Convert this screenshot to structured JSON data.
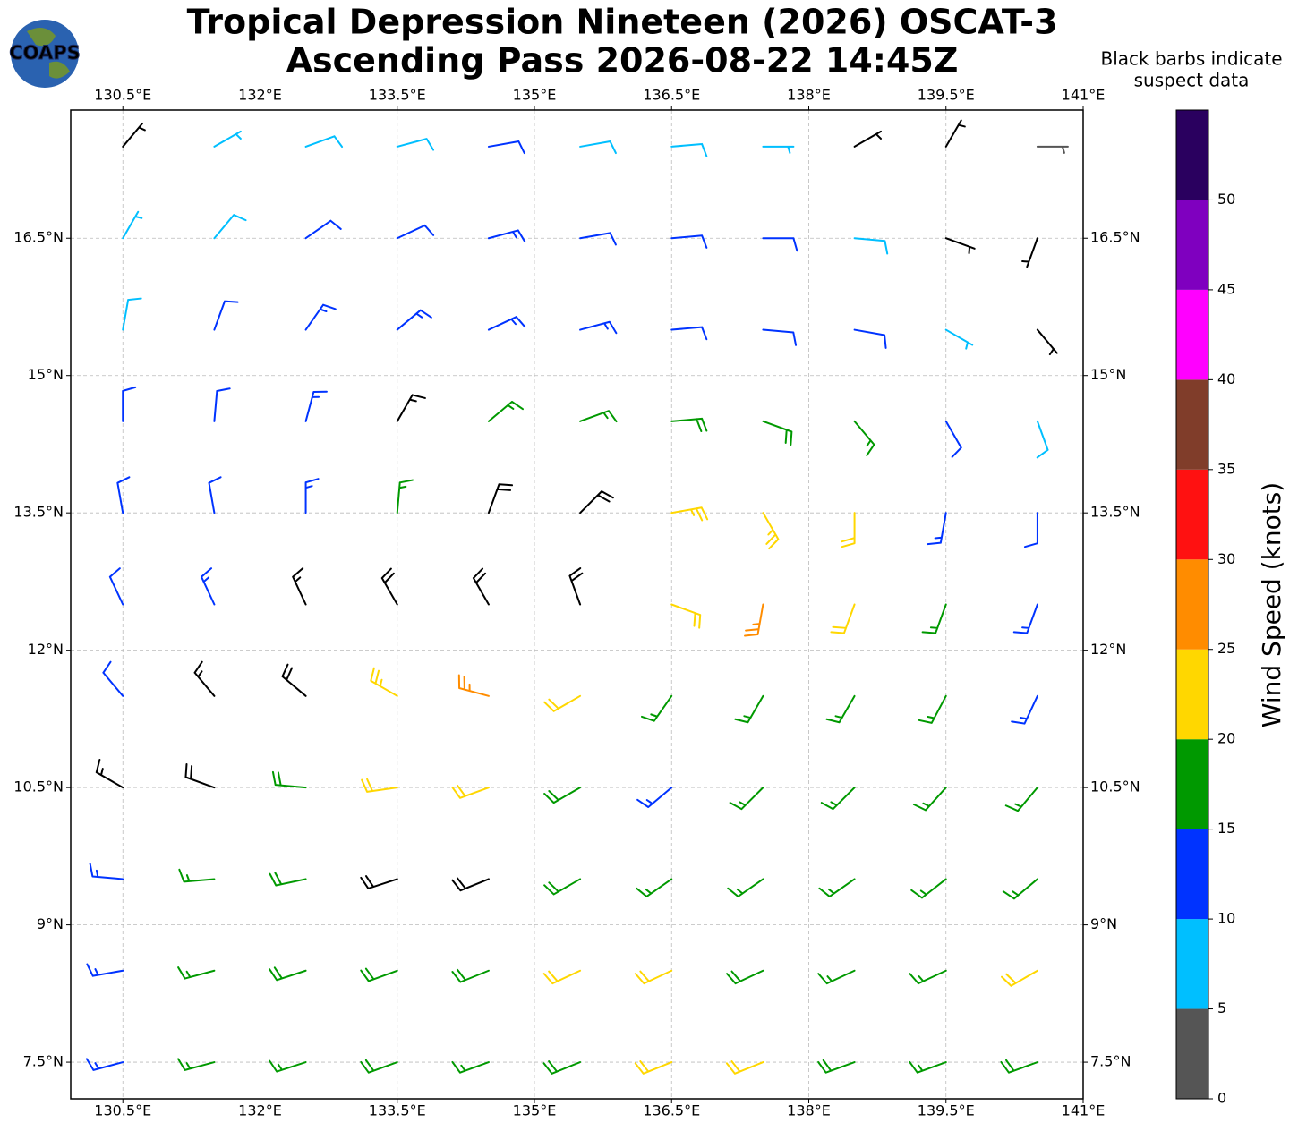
{
  "chart_data": {
    "type": "wind_barbs",
    "title_lines": [
      "Tropical Depression Nineteen (2026) OSCAT-3",
      "Ascending Pass 2026-08-22 14:45Z"
    ],
    "note_lines": [
      "Black barbs indicate",
      "suspect data"
    ],
    "logo_text": "COAPS",
    "xlim": [
      129.93,
      141.0
    ],
    "ylim": [
      7.1,
      17.9
    ],
    "xticks": [
      {
        "value": 130.5,
        "label": "130.5°E"
      },
      {
        "value": 132,
        "label": "132°E"
      },
      {
        "value": 133.5,
        "label": "133.5°E"
      },
      {
        "value": 135,
        "label": "135°E"
      },
      {
        "value": 136.5,
        "label": "136.5°E"
      },
      {
        "value": 138,
        "label": "138°E"
      },
      {
        "value": 139.5,
        "label": "139.5°E"
      },
      {
        "value": 141,
        "label": "141°E"
      }
    ],
    "yticks": [
      {
        "value": 7.5,
        "label": "7.5°N"
      },
      {
        "value": 9,
        "label": "9°N"
      },
      {
        "value": 10.5,
        "label": "10.5°N"
      },
      {
        "value": 12,
        "label": "12°N"
      },
      {
        "value": 13.5,
        "label": "13.5°N"
      },
      {
        "value": 15,
        "label": "15°N"
      },
      {
        "value": 16.5,
        "label": "16.5°N"
      }
    ],
    "grid": true,
    "suspect_color": "#000000",
    "barbs": {
      "lon": [
        130.5,
        131.5,
        132.5,
        133.5,
        134.5,
        135.5,
        136.5,
        137.5,
        138.5,
        139.5,
        140.5
      ],
      "lat": [
        7.5,
        8.5,
        9.5,
        10.5,
        11.5,
        12.5,
        13.5,
        14.5,
        15.5,
        16.5,
        17.5
      ],
      "speed": [
        [
          13,
          15,
          17,
          18,
          17,
          19,
          21,
          20,
          18,
          17,
          19
        ],
        [
          13,
          16,
          18,
          19,
          19,
          21,
          22,
          18,
          17,
          17,
          22
        ],
        [
          14,
          17,
          18,
          20,
          19,
          18,
          16,
          17,
          17,
          17,
          17
        ],
        [
          15,
          18,
          19,
          22,
          22,
          19,
          14,
          16,
          16,
          16,
          16
        ],
        [
          11,
          17,
          20,
          24,
          26,
          22,
          17,
          15,
          15,
          15,
          14
        ],
        [
          11,
          14,
          17,
          19,
          20,
          18,
          22,
          27,
          20,
          15,
          13
        ],
        [
          11,
          12,
          13,
          16,
          18,
          21,
          24,
          24,
          20,
          14,
          10
        ],
        [
          10,
          12,
          14,
          16,
          17,
          17,
          18,
          18,
          15,
          12,
          8
        ],
        [
          8,
          12,
          14,
          14,
          14,
          13,
          12,
          12,
          10,
          7,
          4
        ],
        [
          6,
          9,
          11,
          12,
          13,
          12,
          11,
          10,
          8,
          4,
          3
        ],
        [
          3,
          6,
          8,
          9,
          10,
          9,
          8,
          7,
          4,
          3,
          4
        ]
      ],
      "direction": [
        [
          255,
          255,
          252,
          250,
          250,
          248,
          248,
          248,
          250,
          250,
          250
        ],
        [
          260,
          255,
          252,
          250,
          248,
          245,
          245,
          245,
          245,
          245,
          240
        ],
        [
          275,
          265,
          258,
          252,
          248,
          240,
          235,
          235,
          235,
          232,
          230
        ],
        [
          300,
          290,
          275,
          262,
          250,
          240,
          230,
          225,
          225,
          222,
          220
        ],
        [
          320,
          320,
          310,
          300,
          285,
          240,
          215,
          210,
          210,
          208,
          205
        ],
        [
          335,
          335,
          335,
          330,
          330,
          340,
          110,
          190,
          200,
          200,
          200
        ],
        [
          350,
          350,
          0,
          5,
          20,
          45,
          80,
          150,
          180,
          190,
          180
        ],
        [
          0,
          5,
          15,
          30,
          50,
          70,
          85,
          110,
          140,
          150,
          160
        ],
        [
          10,
          20,
          35,
          50,
          65,
          75,
          85,
          95,
          100,
          120,
          140
        ],
        [
          30,
          40,
          55,
          65,
          75,
          80,
          85,
          90,
          95,
          110,
          200
        ],
        [
          40,
          60,
          70,
          75,
          80,
          80,
          85,
          90,
          60,
          30,
          90
        ]
      ],
      "suspect": [
        [
          false,
          false,
          false,
          false,
          false,
          false,
          false,
          false,
          false,
          false,
          false
        ],
        [
          false,
          false,
          false,
          false,
          false,
          false,
          false,
          false,
          false,
          false,
          false
        ],
        [
          false,
          false,
          false,
          true,
          true,
          false,
          false,
          false,
          false,
          false,
          false
        ],
        [
          true,
          true,
          false,
          false,
          false,
          false,
          false,
          false,
          false,
          false,
          false
        ],
        [
          false,
          true,
          true,
          false,
          false,
          false,
          false,
          false,
          false,
          false,
          false
        ],
        [
          false,
          false,
          true,
          true,
          true,
          true,
          false,
          false,
          false,
          false,
          false
        ],
        [
          false,
          false,
          false,
          false,
          true,
          true,
          false,
          false,
          false,
          false,
          false
        ],
        [
          false,
          false,
          false,
          true,
          false,
          false,
          false,
          false,
          false,
          false,
          false
        ],
        [
          false,
          false,
          false,
          false,
          false,
          false,
          false,
          false,
          false,
          false,
          true
        ],
        [
          false,
          false,
          false,
          false,
          false,
          false,
          false,
          false,
          false,
          true,
          true
        ],
        [
          true,
          false,
          false,
          false,
          false,
          false,
          false,
          false,
          true,
          true,
          false
        ]
      ]
    },
    "colorbar": {
      "label": "Wind Speed (knots)",
      "bounds": [
        0,
        5,
        10,
        15,
        20,
        25,
        30,
        35,
        40,
        45,
        50,
        55
      ],
      "colors": [
        "#555555",
        "#00bfff",
        "#0033ff",
        "#009900",
        "#ffd700",
        "#ff8c00",
        "#ff1111",
        "#803d2a",
        "#ff00ff",
        "#7f00bf",
        "#2a005f"
      ],
      "ticks": [
        0,
        5,
        10,
        15,
        20,
        25,
        30,
        35,
        40,
        45,
        50
      ]
    }
  }
}
